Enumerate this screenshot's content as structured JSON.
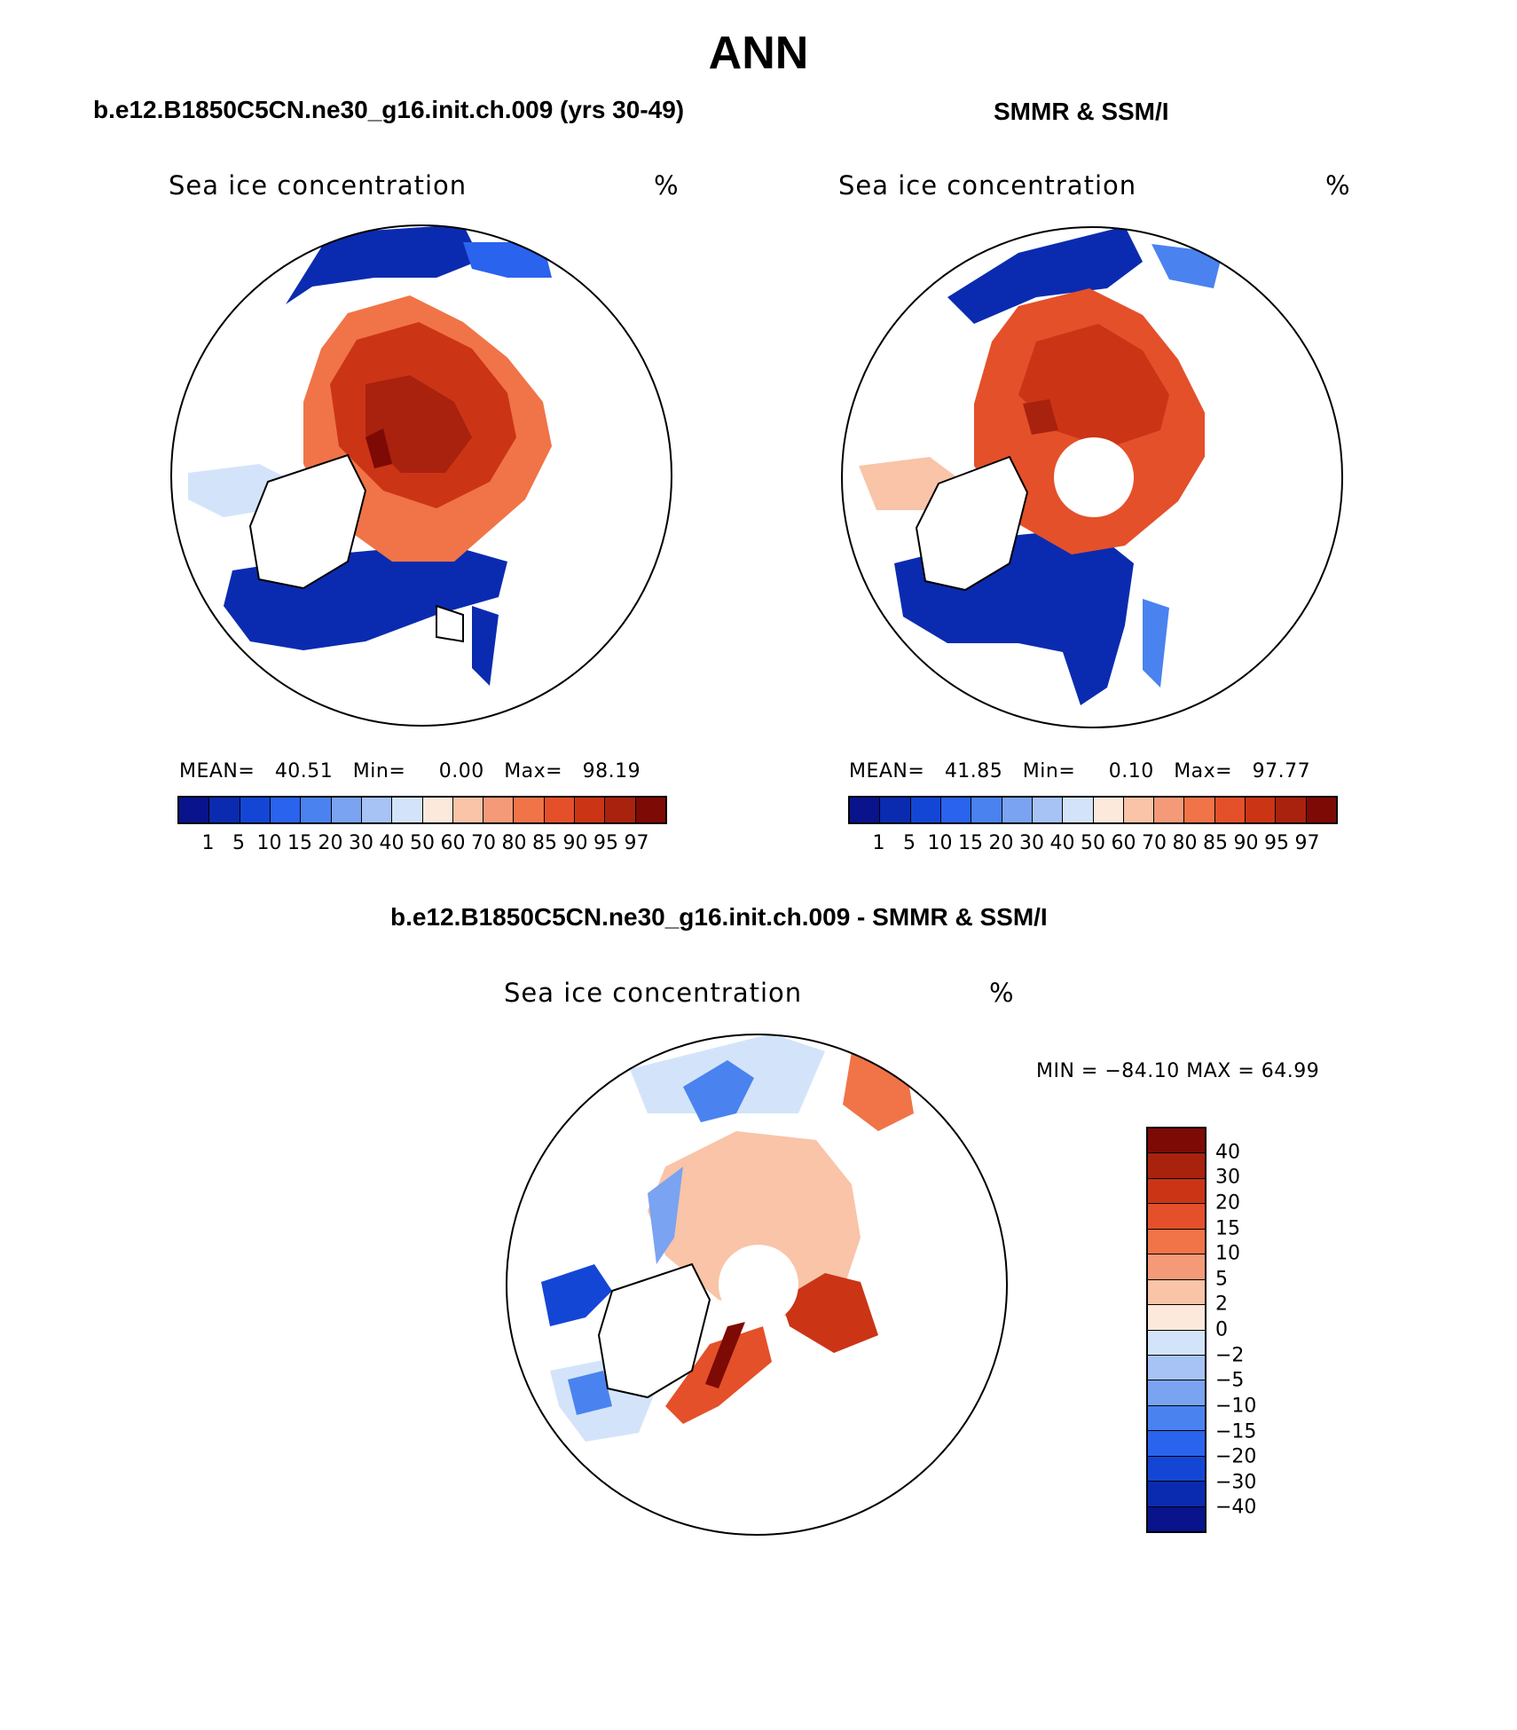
{
  "main_title": "ANN",
  "panels": {
    "model": {
      "title": "b.e12.B1850C5CN.ne30_g16.init.ch.009 (yrs 30-49)",
      "var_label": "Sea ice concentration",
      "units": "%",
      "mean_label": "MEAN=",
      "mean_value": "40.51",
      "min_label": "Min=",
      "min_value": "0.00",
      "max_label": "Max=",
      "max_value": "98.19"
    },
    "obs": {
      "title": "SMMR & SSM/I",
      "var_label": "Sea ice concentration",
      "units": "%",
      "mean_label": "MEAN=",
      "mean_value": "41.85",
      "min_label": "Min=",
      "min_value": "0.10",
      "max_label": "Max=",
      "max_value": "97.77"
    },
    "diff": {
      "title": "b.e12.B1850C5CN.ne30_g16.init.ch.009 - SMMR & SSM/I",
      "var_label": "Sea ice concentration",
      "units": "%",
      "minmax_text": "MIN = −84.10 MAX =   64.99"
    }
  },
  "colorbar_abs": {
    "levels": [
      "1",
      "5",
      "10",
      "15",
      "20",
      "30",
      "40",
      "50",
      "60",
      "70",
      "80",
      "85",
      "90",
      "95",
      "97"
    ],
    "colors": [
      "#08138c",
      "#0a2bb0",
      "#1446d6",
      "#2a63ee",
      "#4a82f0",
      "#7aa3f2",
      "#a7c3f6",
      "#d3e4fa",
      "#fde9dc",
      "#f9c4a8",
      "#f59a78",
      "#f07447",
      "#e4502a",
      "#cc3416",
      "#a8220e",
      "#7d0a05"
    ]
  },
  "colorbar_diff": {
    "levels": [
      "40",
      "30",
      "20",
      "15",
      "10",
      "5",
      "2",
      "0",
      "−2",
      "−5",
      "−10",
      "−15",
      "−20",
      "−30",
      "−40"
    ],
    "colors": [
      "#7d0a05",
      "#a8220e",
      "#cc3416",
      "#e4502a",
      "#f07447",
      "#f59a78",
      "#f9c4a8",
      "#fde9dc",
      "#d3e4fa",
      "#a7c3f6",
      "#7aa3f2",
      "#4a82f0",
      "#2a63ee",
      "#1446d6",
      "#0a2bb0",
      "#08138c"
    ]
  }
}
